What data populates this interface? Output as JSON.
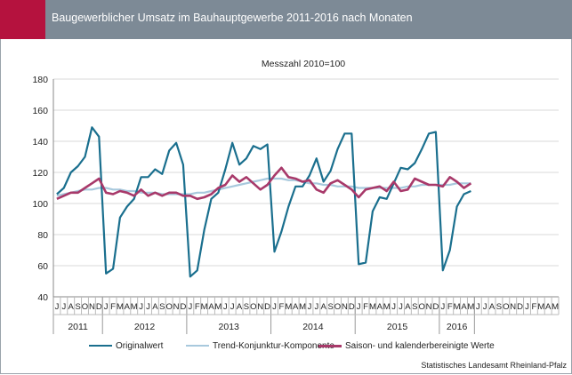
{
  "header": {
    "title": "Baugewerblicher Umsatz im Bauhauptgewerbe 2011-2016 nach Monaten"
  },
  "source": "Statistisches Landesamt Rheinland-Pfalz",
  "colors": {
    "original": "#1a6f8e",
    "trend": "#a8c9dd",
    "saison": "#a8396a",
    "header": "#7d8a96",
    "accent": "#b5123e"
  },
  "chart_data": {
    "type": "line",
    "subtitle": "Messzahl 2010=100",
    "ylim": [
      40,
      180
    ],
    "yticks": [
      40,
      60,
      80,
      100,
      120,
      140,
      160,
      180
    ],
    "grid": true,
    "legend_position": "bottom",
    "month_labels": [
      "J",
      "J",
      "A",
      "S",
      "O",
      "N",
      "D",
      "J",
      "F",
      "M",
      "A",
      "M",
      "J",
      "J",
      "A",
      "S",
      "O",
      "N",
      "D",
      "J",
      "F",
      "M",
      "A",
      "M",
      "J",
      "J",
      "A",
      "S",
      "O",
      "N",
      "D",
      "J",
      "F",
      "M",
      "A",
      "M",
      "J",
      "J",
      "A",
      "S",
      "O",
      "N",
      "D",
      "J",
      "F",
      "M",
      "A",
      "M",
      "J",
      "J",
      "A",
      "S",
      "O",
      "N",
      "D",
      "J",
      "F",
      "M",
      "A",
      "M",
      "J",
      "J",
      "A",
      "S",
      "O",
      "N",
      "D",
      "J",
      "F",
      "M",
      "A",
      "M"
    ],
    "years": [
      {
        "label": "2011",
        "start": 0,
        "end": 7
      },
      {
        "label": "2012",
        "start": 7,
        "end": 19
      },
      {
        "label": "2013",
        "start": 19,
        "end": 31
      },
      {
        "label": "2014",
        "start": 31,
        "end": 43
      },
      {
        "label": "2015",
        "start": 43,
        "end": 55
      },
      {
        "label": "2016",
        "start": 55,
        "end": 60
      }
    ],
    "series": [
      {
        "name": "Originalwert",
        "values": [
          106,
          110,
          120,
          124,
          130,
          149,
          143,
          55,
          58,
          91,
          98,
          103,
          117,
          117,
          122,
          119,
          134,
          139,
          125,
          53,
          57,
          83,
          103,
          107,
          122,
          139,
          125,
          129,
          137,
          135,
          138,
          69,
          82,
          98,
          111,
          111,
          118,
          129,
          114,
          121,
          135,
          145,
          145,
          61,
          62,
          95,
          104,
          103,
          113,
          123,
          122,
          126,
          135,
          145,
          146,
          57,
          70,
          98,
          106,
          108
        ]
      },
      {
        "name": "Trend-Konjunktur-Komponente",
        "values": [
          105,
          106,
          107,
          108,
          109,
          109,
          110,
          110,
          109,
          109,
          108,
          108,
          107,
          107,
          107,
          106,
          106,
          106,
          106,
          106,
          107,
          107,
          108,
          109,
          110,
          111,
          112,
          113,
          114,
          115,
          116,
          116,
          116,
          115,
          115,
          114,
          113,
          113,
          112,
          112,
          111,
          111,
          111,
          110,
          110,
          110,
          110,
          110,
          110,
          110,
          111,
          111,
          112,
          112,
          112,
          112,
          112,
          113,
          113,
          113
        ]
      },
      {
        "name": "Saison- und kalenderbereinigte Werte",
        "values": [
          103,
          105,
          107,
          107,
          110,
          113,
          116,
          107,
          106,
          108,
          107,
          105,
          109,
          105,
          107,
          105,
          107,
          107,
          105,
          105,
          103,
          104,
          106,
          110,
          112,
          118,
          114,
          117,
          113,
          109,
          112,
          118,
          123,
          117,
          116,
          114,
          115,
          109,
          107,
          113,
          115,
          112,
          109,
          104,
          109,
          110,
          111,
          108,
          114,
          108,
          109,
          116,
          114,
          112,
          112,
          111,
          117,
          114,
          110,
          113
        ]
      }
    ]
  }
}
